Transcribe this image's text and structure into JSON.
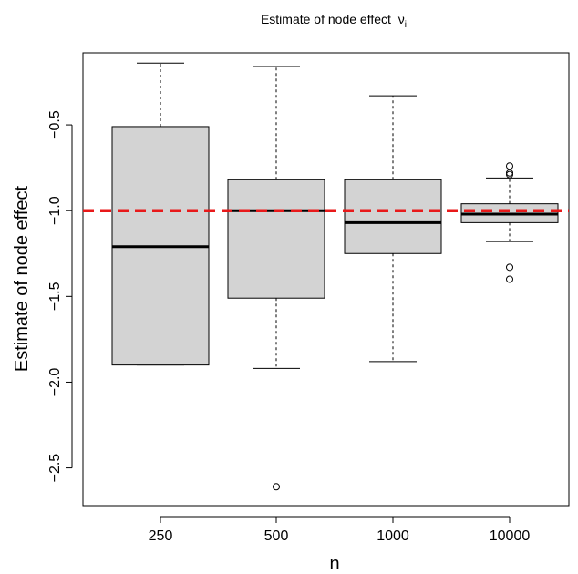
{
  "chart_data": {
    "type": "boxplot",
    "title": "Estimate of node effect",
    "title_symbol": "ν",
    "title_subscript": "i",
    "xlabel": "n",
    "ylabel": "Estimate of node effect",
    "categories": [
      "250",
      "500",
      "1000",
      "10000"
    ],
    "ylim": [
      -2.72,
      -0.08
    ],
    "yticks": [
      -2.5,
      -2.0,
      -1.5,
      -1.0,
      -0.5
    ],
    "ytick_labels": [
      "−2.5",
      "−2.0",
      "−1.5",
      "−1.0",
      "−0.5"
    ],
    "boxes": [
      {
        "category": "250",
        "whisker_low": -1.9,
        "q1": -1.9,
        "median": -1.21,
        "q3": -0.51,
        "whisker_high": -0.14,
        "outliers": []
      },
      {
        "category": "500",
        "whisker_low": -1.92,
        "q1": -1.51,
        "median": -1.0,
        "q3": -0.82,
        "whisker_high": -0.16,
        "outliers": [
          -2.61
        ]
      },
      {
        "category": "1000",
        "whisker_low": -1.88,
        "q1": -1.25,
        "median": -1.07,
        "q3": -0.82,
        "whisker_high": -0.33,
        "outliers": []
      },
      {
        "category": "10000",
        "whisker_low": -1.18,
        "q1": -1.07,
        "median": -1.02,
        "q3": -0.96,
        "whisker_high": -0.81,
        "outliers": [
          -0.74,
          -0.78,
          -0.79,
          -1.33,
          -1.4
        ]
      }
    ],
    "reference_line": {
      "y": -1.0,
      "color": "#e8191a",
      "style": "dashed"
    },
    "box_fill": "#d3d3d3",
    "grid": false,
    "legend": "none"
  }
}
